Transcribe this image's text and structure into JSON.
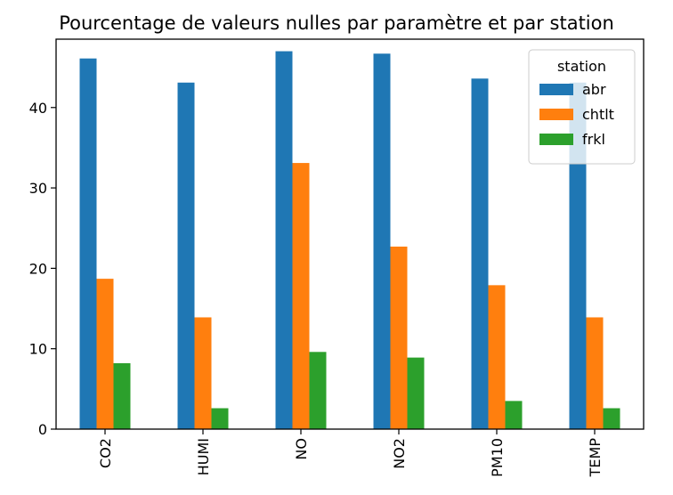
{
  "chart_data": {
    "type": "bar",
    "title": "Pourcentage de valeurs nulles par paramètre et par station",
    "xlabel": "",
    "ylabel": "",
    "categories": [
      "CO2",
      "HUMI",
      "NO",
      "NO2",
      "PM10",
      "TEMP"
    ],
    "series": [
      {
        "name": "abr",
        "color": "#1f77b4",
        "values": [
          46.1,
          43.1,
          47.0,
          46.7,
          43.6,
          43.1
        ]
      },
      {
        "name": "chtlt",
        "color": "#ff7f0e",
        "values": [
          18.7,
          13.9,
          33.1,
          22.7,
          17.9,
          13.9
        ]
      },
      {
        "name": "frkl",
        "color": "#2ca02c",
        "values": [
          8.2,
          2.6,
          9.6,
          8.9,
          3.5,
          2.6
        ]
      }
    ],
    "ylim": [
      0,
      48.5
    ],
    "yticks": [
      0,
      10,
      20,
      30,
      40
    ],
    "grid": false,
    "legend": {
      "title": "station",
      "placement": "top-right"
    }
  }
}
